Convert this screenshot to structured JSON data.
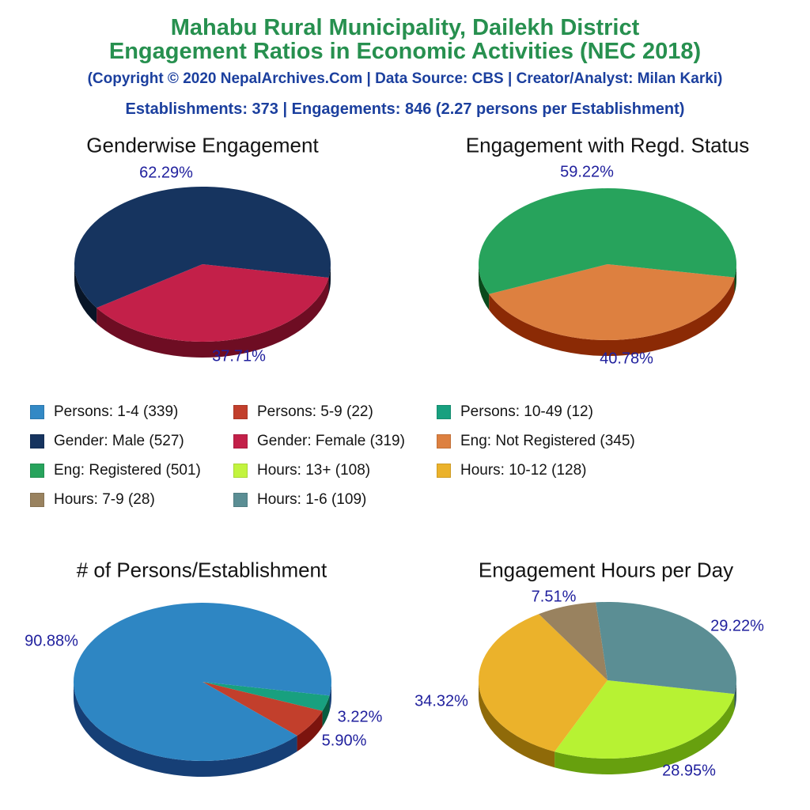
{
  "header": {
    "title_line1": "Mahabu Rural Municipality, Dailekh District",
    "title_line2": "Engagement Ratios in Economic Activities (NEC 2018)",
    "subtitle": "(Copyright © 2020 NepalArchives.Com | Data Source: CBS | Creator/Analyst: Milan Karki)",
    "stats": "Establishments: 373 | Engagements: 846 (2.27 persons per Establishment)",
    "title_color": "#27904f",
    "subtitle_color": "#1b3f9e",
    "pct_label_color": "#21219e"
  },
  "legend": {
    "position": "middle-left",
    "items": [
      {
        "label": "Persons: 1-4 (339)",
        "color": "#3389c5"
      },
      {
        "label": "Persons: 5-9 (22)",
        "color": "#c23f2c"
      },
      {
        "label": "Persons: 10-49 (12)",
        "color": "#18a07f"
      },
      {
        "label": "Gender: Male (527)",
        "color": "#16345f"
      },
      {
        "label": "Gender: Female (319)",
        "color": "#c32049"
      },
      {
        "label": "Eng: Not Registered (345)",
        "color": "#dd8040"
      },
      {
        "label": "Eng: Registered (501)",
        "color": "#27a35c"
      },
      {
        "label": "Hours: 13+ (108)",
        "color": "#c2f43e"
      },
      {
        "label": "Hours: 10-12 (128)",
        "color": "#ebb22b"
      },
      {
        "label": "Hours: 7-9 (28)",
        "color": "#99825f"
      },
      {
        "label": "Hours: 1-6 (109)",
        "color": "#5b8e94"
      }
    ]
  },
  "chart_data": [
    {
      "type": "pie",
      "title": "Genderwise Engagement",
      "style": "3d",
      "start_angle_deg": 10,
      "direction": "clockwise",
      "total": 846,
      "slices": [
        {
          "label": "Gender: Female",
          "value": 319,
          "pct": "37.71%",
          "color": "#c32049",
          "side_color": "#6e0d23"
        },
        {
          "label": "Gender: Male",
          "value": 527,
          "pct": "62.29%",
          "color": "#16345f",
          "side_color": "#081527"
        }
      ]
    },
    {
      "type": "pie",
      "title": "Engagement with Regd. Status",
      "style": "3d",
      "start_angle_deg": 10,
      "direction": "clockwise",
      "total": 846,
      "slices": [
        {
          "label": "Eng: Not Registered",
          "value": 345,
          "pct": "40.78%",
          "color": "#dd8040",
          "side_color": "#8b2a05"
        },
        {
          "label": "Eng: Registered",
          "value": 501,
          "pct": "59.22%",
          "color": "#27a35c",
          "side_color": "#0a4a1c"
        }
      ]
    },
    {
      "type": "pie",
      "title": "# of Persons/Establishment",
      "style": "3d",
      "start_angle_deg": 10,
      "direction": "clockwise",
      "total": 373,
      "slices": [
        {
          "label": "Persons: 10-49",
          "value": 12,
          "pct": "3.22%",
          "color": "#18a07f",
          "side_color": "#075c40"
        },
        {
          "label": "Persons: 5-9",
          "value": 22,
          "pct": "5.90%",
          "color": "#c23f2c",
          "side_color": "#7c140e"
        },
        {
          "label": "Persons: 1-4",
          "value": 339,
          "pct": "90.88%",
          "color": "#2e86c3",
          "side_color": "#163f76"
        }
      ]
    },
    {
      "type": "pie",
      "title": "Engagement Hours per Day",
      "style": "3d",
      "start_angle_deg": 10,
      "direction": "clockwise",
      "total": 373,
      "slices": [
        {
          "label": "Hours: 13+",
          "value": 108,
          "pct": "28.95%",
          "color": "#b7f233",
          "side_color": "#67a00e"
        },
        {
          "label": "Hours: 10-12",
          "value": 128,
          "pct": "34.32%",
          "color": "#ebb22b",
          "side_color": "#8f6a09"
        },
        {
          "label": "Hours: 7-9",
          "value": 28,
          "pct": "7.51%",
          "color": "#99825f",
          "side_color": "#5c4e3a"
        },
        {
          "label": "Hours: 1-6",
          "value": 109,
          "pct": "29.22%",
          "color": "#5b8e94",
          "side_color": "#32565c"
        }
      ]
    }
  ]
}
